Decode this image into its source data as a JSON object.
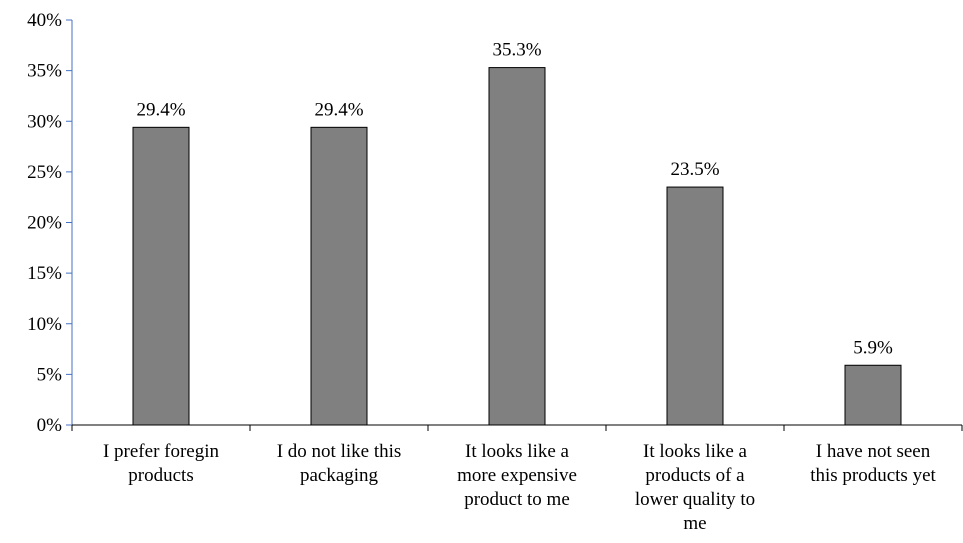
{
  "chart_data": {
    "type": "bar",
    "title": "",
    "xlabel": "",
    "ylabel": "",
    "categories": [
      [
        "I prefer foregin",
        "products"
      ],
      [
        "I do not like this",
        "packaging"
      ],
      [
        "It looks like a",
        "more expensive",
        "product to me"
      ],
      [
        "It looks like a",
        "products of a",
        "lower quality to",
        "me"
      ],
      [
        "I have not seen",
        "this products yet"
      ]
    ],
    "values": [
      29.4,
      29.4,
      35.3,
      23.5,
      5.9
    ],
    "value_labels": [
      "29.4%",
      "29.4%",
      "35.3%",
      "23.5%",
      "5.9%"
    ],
    "y_ticks": [
      "0%",
      "5%",
      "10%",
      "15%",
      "20%",
      "25%",
      "30%",
      "35%",
      "40%"
    ],
    "ylim": [
      0,
      40
    ],
    "grid": false,
    "legend": "none",
    "colors": {
      "bar_fill": "#808080",
      "bar_stroke": "#000000",
      "axis": "#4472c4",
      "x_axis": "#000000"
    }
  }
}
